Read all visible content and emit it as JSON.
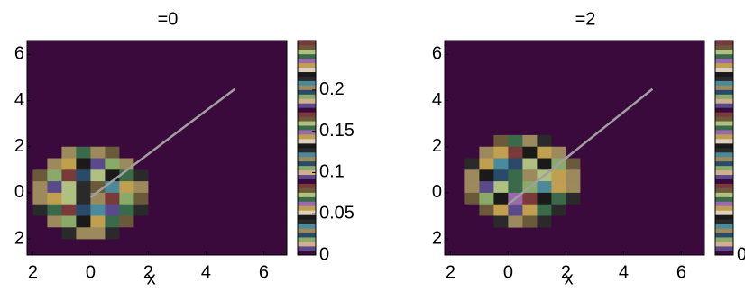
{
  "chart_data": [
    {
      "type": "heatmap",
      "title": "=0",
      "xlabel": "x",
      "x": [
        -1.75,
        -1.25,
        -0.75,
        -0.25,
        0.25,
        0.75,
        1.25,
        1.75,
        2.25
      ],
      "y": [
        1.75,
        1.25,
        0.75,
        0.25,
        -0.25,
        -0.75,
        -1.25,
        -1.75
      ],
      "z": [
        [
          0,
          0,
          0.05,
          0.08,
          0.06,
          0.04,
          0,
          0,
          0
        ],
        [
          0,
          0.06,
          0.1,
          0.14,
          0.12,
          0.09,
          0.05,
          0,
          0
        ],
        [
          0.04,
          0.09,
          0.16,
          0.2,
          0.18,
          0.13,
          0.08,
          0.03,
          0
        ],
        [
          0.06,
          0.12,
          0.19,
          0.02,
          0.04,
          0.17,
          0.1,
          0.05,
          0
        ],
        [
          0.05,
          0.11,
          0.18,
          0.03,
          0.05,
          0.16,
          0.09,
          0.04,
          0
        ],
        [
          0.03,
          0.08,
          0.15,
          0.21,
          0.17,
          0.12,
          0.07,
          0.02,
          0
        ],
        [
          0,
          0.05,
          0.09,
          0.13,
          0.11,
          0.08,
          0.04,
          0,
          0
        ],
        [
          0,
          0,
          0.03,
          0.06,
          0.05,
          0.03,
          0,
          0,
          0
        ]
      ],
      "colormap": [
        "#3b0a3c",
        "#2a2a2a",
        "#6b5a3a",
        "#9c8a5c",
        "#3a6a4a",
        "#8aaa6a",
        "#c0a050",
        "#5a4a8a",
        "#1a1a1a",
        "#7a3a3a",
        "#4a8a9a",
        "#b0c080",
        "#2a4a6a",
        "#9a6aaa",
        "#d0b090",
        "#e0d0c0"
      ],
      "clim": [
        0,
        0.26
      ],
      "cticks": [
        0,
        0.05,
        0.1,
        0.15,
        0.2
      ],
      "xlim": [
        -2.2,
        6.8
      ],
      "ylim": [
        -2.7,
        6.6
      ],
      "xticks": [
        {
          "value": -2,
          "label": "2"
        },
        0,
        2,
        4,
        6
      ],
      "yticks": [
        {
          "value": -2,
          "label": "2"
        },
        0,
        2,
        4,
        6
      ],
      "line": {
        "x": [
          0,
          5
        ],
        "y": [
          -0.2,
          4.5
        ],
        "color": "#a0a0a0"
      }
    },
    {
      "type": "heatmap",
      "title": "=2",
      "xlabel": "x",
      "x": [
        -1.25,
        -0.75,
        -0.25,
        0.25,
        0.75,
        1.25,
        1.75,
        2.25,
        2.75
      ],
      "y": [
        2.25,
        1.75,
        1.25,
        0.75,
        0.25,
        -0.25,
        -0.75,
        -1.25
      ],
      "z": [
        [
          0,
          0,
          0.04,
          0.07,
          0.06,
          0.03,
          0,
          0,
          0
        ],
        [
          0,
          0.05,
          0.11,
          0.15,
          0.13,
          0.1,
          0.06,
          0,
          0
        ],
        [
          0.03,
          0.1,
          0.17,
          0.21,
          0.19,
          0.14,
          0.09,
          0.04,
          0
        ],
        [
          0.05,
          0.13,
          0.2,
          0.08,
          0.06,
          0.18,
          0.11,
          0.06,
          0
        ],
        [
          0.06,
          0.12,
          0.19,
          0.07,
          0.09,
          0.17,
          0.1,
          0.05,
          0
        ],
        [
          0.04,
          0.09,
          0.14,
          0.22,
          0.16,
          0.13,
          0.08,
          0.03,
          0
        ],
        [
          0,
          0.04,
          0.1,
          0.12,
          0.1,
          0.07,
          0.03,
          0,
          0
        ],
        [
          0,
          0,
          0.02,
          0.05,
          0.04,
          0.02,
          0,
          0,
          0
        ]
      ],
      "colormap": [
        "#3b0a3c",
        "#2a2a2a",
        "#6b5a3a",
        "#9c8a5c",
        "#3a6a4a",
        "#8aaa6a",
        "#c0a050",
        "#5a4a8a",
        "#1a1a1a",
        "#7a3a3a",
        "#4a8a9a",
        "#b0c080",
        "#2a4a6a",
        "#9a6aaa",
        "#d0b090",
        "#e0d0c0"
      ],
      "clim": [
        0,
        0.26
      ],
      "cticks": [
        0
      ],
      "xlim": [
        -2.2,
        6.8
      ],
      "ylim": [
        -2.7,
        6.6
      ],
      "xticks": [
        {
          "value": -2,
          "label": "2"
        },
        0,
        2,
        4,
        6
      ],
      "yticks": [
        {
          "value": -2,
          "label": "2"
        },
        0,
        2,
        4,
        6
      ],
      "line": {
        "x": [
          0,
          5
        ],
        "y": [
          -0.5,
          4.5
        ],
        "color": "#a0a0a0"
      }
    }
  ]
}
